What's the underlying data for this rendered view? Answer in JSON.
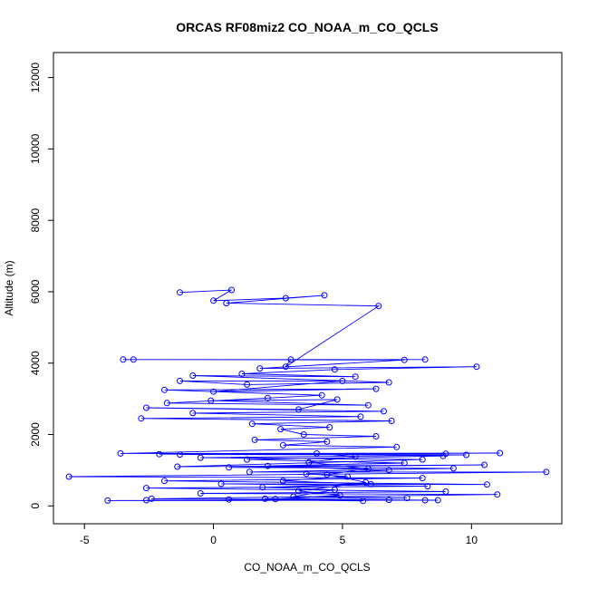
{
  "chart_data": {
    "type": "scatter",
    "title": "ORCAS RF08miz2 CO_NOAA_m_CO_QCLS",
    "xlabel": "CO_NOAA_m_CO_QCLS",
    "ylabel": "Altitude (m)",
    "xlim": [
      -6.2,
      13.5
    ],
    "ylim": [
      -500,
      12700
    ],
    "x_ticks": [
      -5,
      0,
      5,
      10
    ],
    "y_ticks": [
      0,
      2000,
      4000,
      6000,
      8000,
      10000,
      12000
    ],
    "x_tick_labels": [
      "-5",
      "0",
      "5",
      "10"
    ],
    "y_tick_labels": [
      "0",
      "2000",
      "4000",
      "6000",
      "8000",
      "10000",
      "12000"
    ],
    "grid": false,
    "legend": "none",
    "color": "#0000ff",
    "series": [
      {
        "points": [
          [
            -1.3,
            5980
          ],
          [
            0.7,
            6050
          ],
          [
            0.0,
            5750
          ],
          [
            2.8,
            5820
          ],
          [
            4.3,
            5900
          ],
          [
            0.5,
            5680
          ],
          [
            6.4,
            5600
          ],
          [
            2.8,
            3900
          ],
          [
            3.0,
            4100
          ],
          [
            -3.5,
            4100
          ],
          [
            8.2,
            4100
          ],
          [
            -3.1,
            4100
          ],
          [
            7.4,
            4090
          ],
          [
            1.8,
            3850
          ],
          [
            10.2,
            3900
          ],
          [
            4.7,
            3820
          ],
          [
            1.1,
            3700
          ],
          [
            5.5,
            3620
          ],
          [
            -0.8,
            3650
          ],
          [
            6.8,
            3460
          ],
          [
            1.3,
            3400
          ],
          [
            -1.3,
            3500
          ],
          [
            5.0,
            3500
          ],
          [
            0.0,
            3200
          ],
          [
            6.3,
            3280
          ],
          [
            -1.9,
            3250
          ],
          [
            4.2,
            3100
          ],
          [
            2.1,
            3020
          ],
          [
            -1.8,
            2880
          ],
          [
            6.0,
            2820
          ],
          [
            -0.1,
            2950
          ],
          [
            4.8,
            2980
          ],
          [
            3.3,
            2700
          ],
          [
            -2.6,
            2750
          ],
          [
            6.6,
            2650
          ],
          [
            -0.8,
            2600
          ],
          [
            5.7,
            2500
          ],
          [
            -2.8,
            2450
          ],
          [
            6.9,
            2380
          ],
          [
            1.5,
            2300
          ],
          [
            4.5,
            2200
          ],
          [
            2.6,
            2150
          ],
          [
            3.5,
            2000
          ],
          [
            6.3,
            1950
          ],
          [
            1.6,
            1850
          ],
          [
            4.4,
            1800
          ],
          [
            2.7,
            1700
          ],
          [
            7.1,
            1650
          ],
          [
            -3.6,
            1470
          ],
          [
            11.1,
            1480
          ],
          [
            -2.1,
            1450
          ],
          [
            9.0,
            1460
          ],
          [
            -1.3,
            1440
          ],
          [
            9.8,
            1430
          ],
          [
            -0.5,
            1350
          ],
          [
            8.1,
            1300
          ],
          [
            -1.4,
            1100
          ],
          [
            10.5,
            1150
          ],
          [
            0.6,
            1080
          ],
          [
            9.3,
            1050
          ],
          [
            1.4,
            950
          ],
          [
            12.9,
            950
          ],
          [
            -5.6,
            820
          ],
          [
            8.1,
            780
          ],
          [
            -1.9,
            700
          ],
          [
            10.6,
            600
          ],
          [
            0.3,
            620
          ],
          [
            8.3,
            550
          ],
          [
            -2.6,
            500
          ],
          [
            9.0,
            400
          ],
          [
            -0.5,
            350
          ],
          [
            11.0,
            320
          ],
          [
            -2.4,
            200
          ],
          [
            8.7,
            160
          ],
          [
            -4.1,
            150
          ],
          [
            6.8,
            170
          ],
          [
            -2.6,
            160
          ],
          [
            8.2,
            160
          ],
          [
            0.6,
            180
          ],
          [
            5.8,
            140
          ],
          [
            2.0,
            200
          ],
          [
            7.5,
            220
          ],
          [
            3.1,
            260
          ],
          [
            4.7,
            450
          ],
          [
            1.9,
            520
          ],
          [
            6.1,
            610
          ],
          [
            2.7,
            700
          ],
          [
            5.2,
            820
          ],
          [
            3.6,
            900
          ],
          [
            6.8,
            1000
          ],
          [
            2.1,
            1120
          ],
          [
            7.4,
            1200
          ],
          [
            1.3,
            1300
          ],
          [
            8.9,
            1400
          ],
          [
            4.0,
            1470
          ],
          [
            5.5,
            1380
          ],
          [
            3.7,
            1220
          ],
          [
            6.0,
            1040
          ],
          [
            4.4,
            880
          ],
          [
            5.9,
            660
          ],
          [
            3.3,
            420
          ],
          [
            4.9,
            300
          ],
          [
            2.4,
            190
          ]
        ]
      }
    ]
  }
}
